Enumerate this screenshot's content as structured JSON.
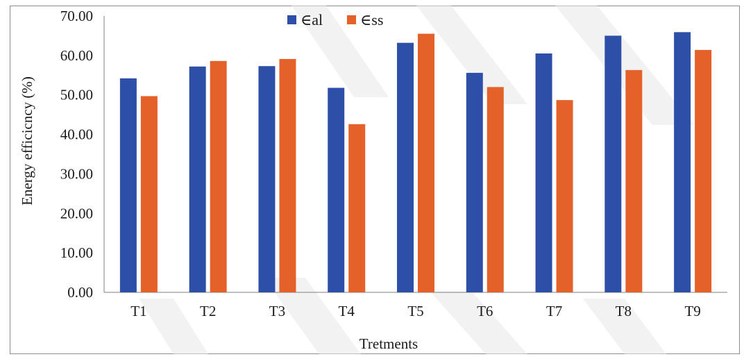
{
  "chart_data": {
    "type": "bar",
    "title": "",
    "xlabel": "Tretments",
    "ylabel": "Energy efficicncy (%)",
    "ylim": [
      0,
      70
    ],
    "yticks": [
      "0.00",
      "10.00",
      "20.00",
      "30.00",
      "40.00",
      "50.00",
      "60.00",
      "70.00"
    ],
    "categories": [
      "T1",
      "T2",
      "T3",
      "T4",
      "T5",
      "T6",
      "T7",
      "T8",
      "T9"
    ],
    "series": [
      {
        "name": "∈al",
        "color": "#2e4fa8",
        "values": [
          54.2,
          57.2,
          57.3,
          51.8,
          63.2,
          55.6,
          60.5,
          65.0,
          65.9
        ]
      },
      {
        "name": "∈ss",
        "color": "#e4622a",
        "values": [
          49.7,
          58.6,
          59.1,
          42.6,
          65.5,
          52.0,
          48.7,
          56.3,
          61.4
        ]
      }
    ],
    "grid": false,
    "legend_position": "top-center"
  }
}
